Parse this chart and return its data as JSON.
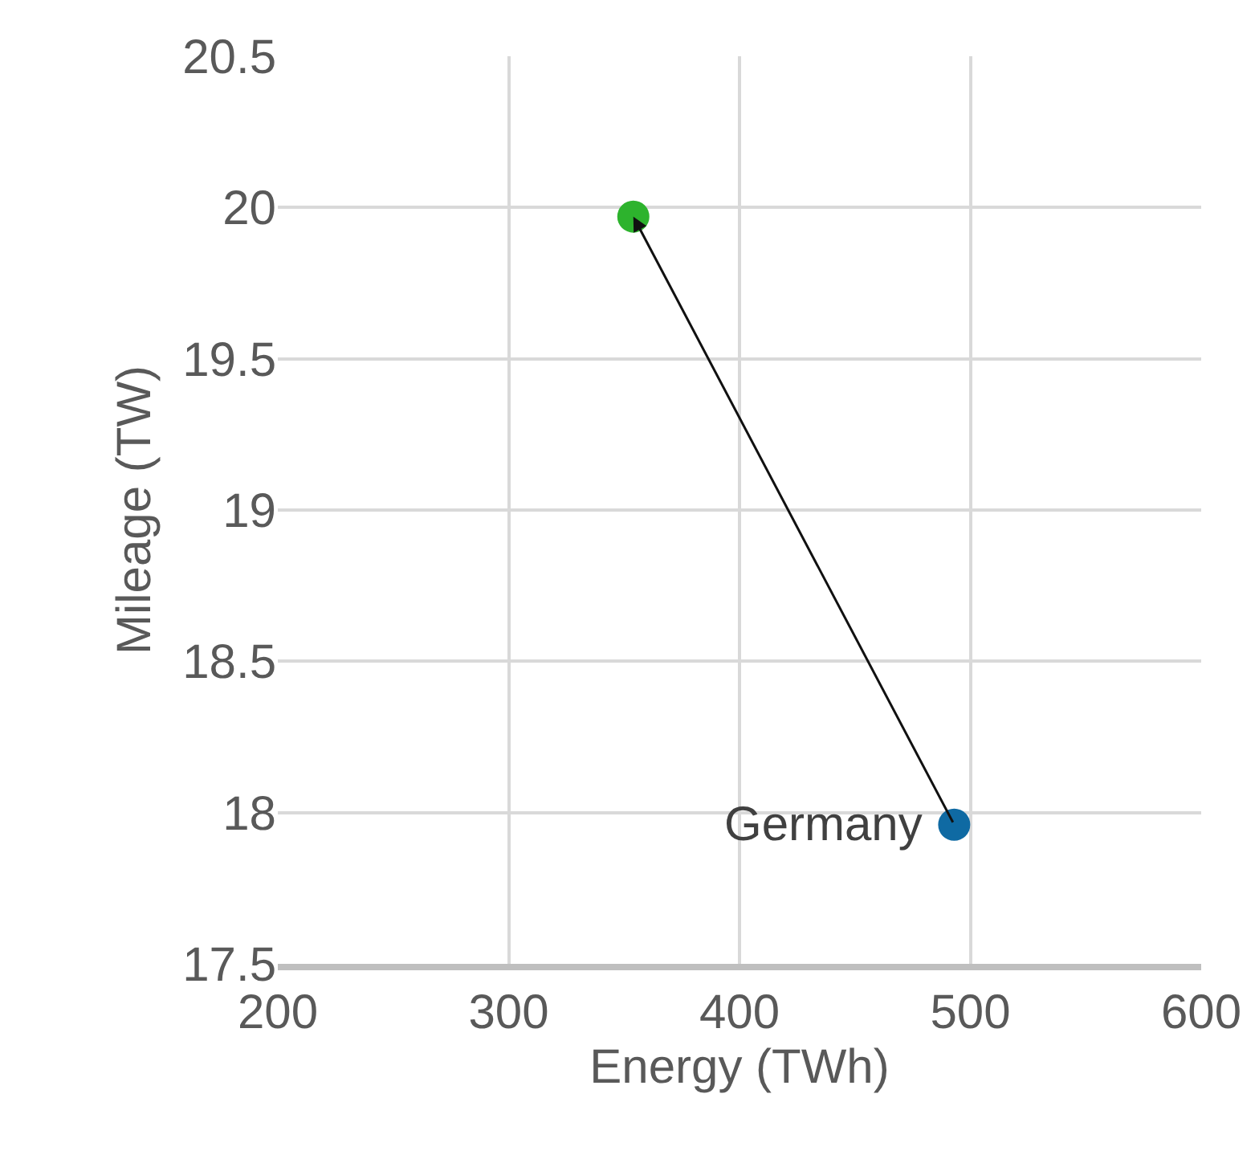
{
  "chart_data": {
    "type": "scatter",
    "xlabel": "Energy (TWh)",
    "ylabel": "Mileage (TW)",
    "x": [
      493,
      354
    ],
    "series": [
      {
        "values": [
          17.96,
          19.97
        ],
        "colors": [
          "#0f6aa3",
          "#2db32d"
        ]
      }
    ],
    "annotations": [
      {
        "text": "Germany",
        "x": 493,
        "y": 17.96
      }
    ],
    "xlim": [
      200,
      600
    ],
    "xticks": [
      200,
      300,
      400,
      500,
      600
    ],
    "ylim": [
      17.5,
      20.5
    ],
    "yticks": [
      17.5,
      18,
      18.5,
      19,
      19.5,
      20,
      20.5
    ],
    "grid": true,
    "marker": "circle"
  }
}
